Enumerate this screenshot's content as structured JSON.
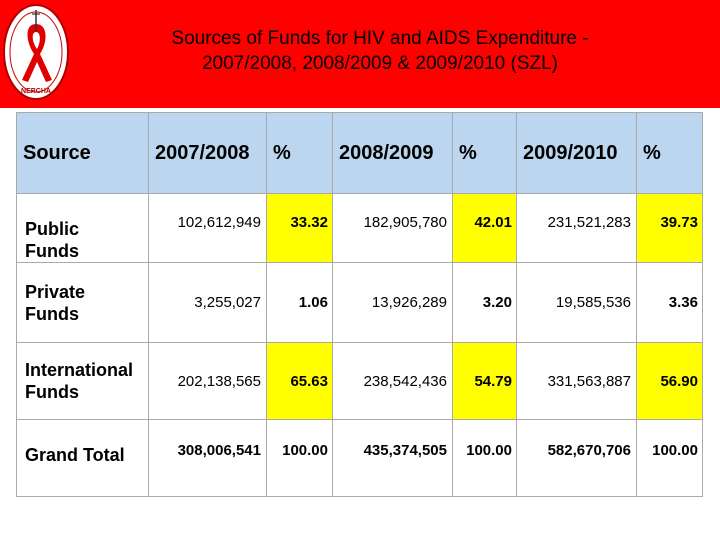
{
  "title": {
    "line1": "Sources of Funds for HIV and AIDS Expenditure -",
    "line2": "2007/2008, 2008/2009 & 2009/2010 (SZL)"
  },
  "logo": {
    "text": "NERCHA"
  },
  "table": {
    "headers": [
      "Source",
      "2007/2008",
      "%",
      "2008/2009",
      "%",
      "2009/2010",
      "%"
    ],
    "rows": [
      {
        "source": "Public\nFunds",
        "values": [
          "102,612,949",
          "33.32",
          "182,905,780",
          "42.01",
          "231,521,283",
          "39.73"
        ]
      },
      {
        "source": "Private\nFunds",
        "values": [
          "3,255,027",
          "1.06",
          "13,926,289",
          "3.20",
          "19,585,536",
          "3.36"
        ]
      },
      {
        "source": "International\nFunds",
        "values": [
          "202,138,565",
          "65.63",
          "238,542,436",
          "54.79",
          "331,563,887",
          "56.90"
        ]
      },
      {
        "source": "Grand Total",
        "values": [
          "308,006,541",
          "100.00",
          "435,374,505",
          "100.00",
          "582,670,706",
          "100.00"
        ]
      }
    ]
  },
  "colors": {
    "header_band": "#ff0000",
    "table_header": "#bcd6ef",
    "highlight": "#ffff00",
    "border": "#a9a9a9"
  }
}
